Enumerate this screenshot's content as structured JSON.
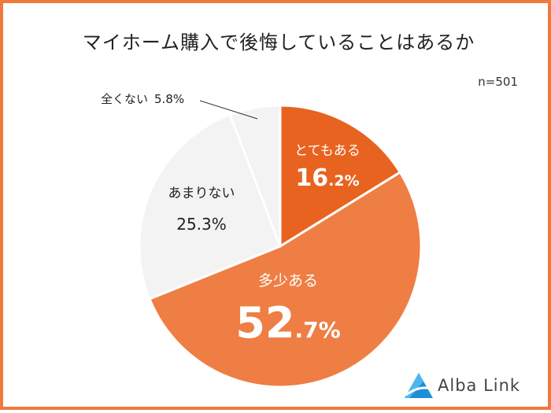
{
  "title": "マイホーム購入で後悔していることはあるか",
  "sample_label": "n=501",
  "brand": "Alba Link",
  "chart_data": {
    "type": "pie",
    "slices": [
      {
        "label": "とてもある",
        "int": "16",
        "dec": ".2%",
        "value": 16.2,
        "color": "#e8631f",
        "text_color": "#ffffff"
      },
      {
        "label": "多少ある",
        "int": "52",
        "dec": ".7%",
        "value": 52.7,
        "color": "#ef7e44",
        "text_color": "#ffffff"
      },
      {
        "label": "あまりない",
        "int": "25.3%",
        "dec": "",
        "value": 25.3,
        "color": "#f3f3f3",
        "text_color": "#222222"
      },
      {
        "label": "全くない",
        "int": "5.8%",
        "dec": "",
        "value": 5.8,
        "color": "#f3f3f3",
        "text_color": "#222222"
      }
    ]
  }
}
